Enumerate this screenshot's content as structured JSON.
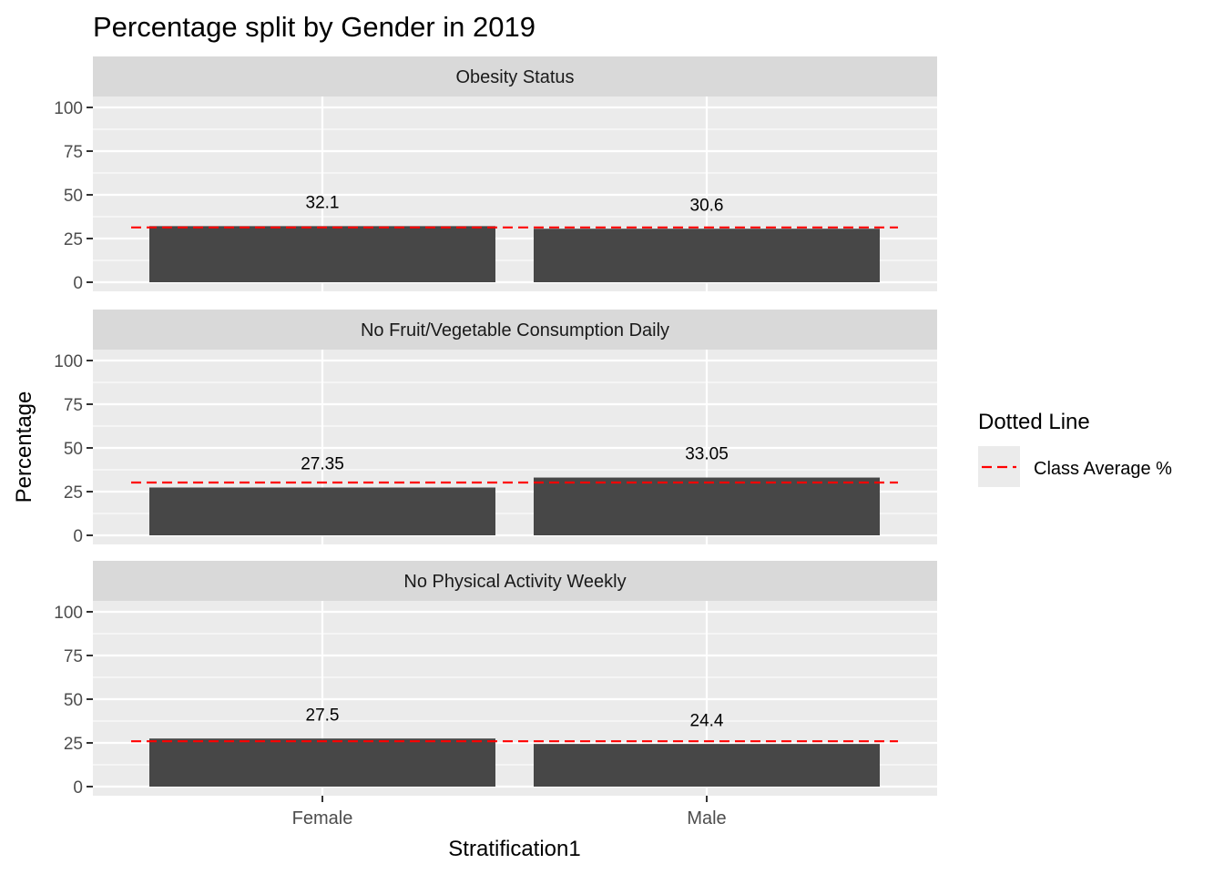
{
  "chart_data": {
    "type": "bar",
    "title": "Percentage split by Gender in 2019",
    "xlabel": "Stratification1",
    "ylabel": "Percentage",
    "categories": [
      "Female",
      "Male"
    ],
    "ylim": [
      0,
      100
    ],
    "yticks": [
      0,
      25,
      50,
      75,
      100
    ],
    "grid": true,
    "legend": {
      "title": "Dotted Line",
      "entries": [
        {
          "label": "Class Average %",
          "color": "#ff0000",
          "style": "dashed"
        }
      ],
      "placement": "right"
    },
    "bar_color": "#474747",
    "panels": [
      {
        "name": "Obesity Status",
        "values": [
          32.1,
          30.6
        ],
        "value_labels": [
          "32.1",
          "30.6"
        ],
        "class_average": 31.35
      },
      {
        "name": "No Fruit/Vegetable Consumption Daily",
        "values": [
          27.35,
          33.05
        ],
        "value_labels": [
          "27.35",
          "33.05"
        ],
        "class_average": 30.2
      },
      {
        "name": "No Physical Activity Weekly",
        "values": [
          27.5,
          24.4
        ],
        "value_labels": [
          "27.5",
          "24.4"
        ],
        "class_average": 25.95
      }
    ]
  }
}
